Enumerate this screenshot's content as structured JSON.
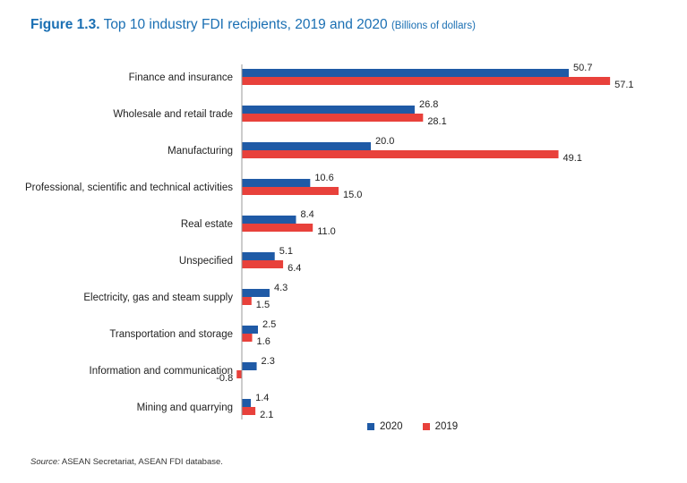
{
  "header": {
    "figure_label": "Figure 1.3.",
    "title_text": "Top 10 industry FDI recipients, 2019 and 2020",
    "units": "(Billions of dollars)"
  },
  "chart_data": {
    "type": "bar",
    "orientation": "horizontal",
    "title": "Top 10 industry FDI recipients, 2019 and 2020",
    "units": "(Billions of dollars)",
    "categories": [
      "Finance and insurance",
      "Wholesale and retail trade",
      "Manufacturing",
      "Professional, scientific and technical activities",
      "Real estate",
      "Unspecified",
      "Electricity, gas and steam supply",
      "Transportation and storage",
      "Information and communication",
      "Mining and quarrying"
    ],
    "series": [
      {
        "name": "2020",
        "color": "#1f5aa6",
        "values": [
          50.7,
          26.8,
          20.0,
          10.6,
          8.4,
          5.1,
          4.3,
          2.5,
          2.3,
          1.4
        ],
        "labels": [
          "50.7",
          "26.8",
          "20.0",
          "10.6",
          "8.4",
          "5.1",
          "4.3",
          "2.5",
          "2.3",
          "1.4"
        ]
      },
      {
        "name": "2019",
        "color": "#e8413b",
        "values": [
          57.1,
          28.1,
          49.1,
          15.0,
          11.0,
          6.4,
          1.5,
          1.6,
          -0.8,
          2.1
        ],
        "labels": [
          "57.1",
          "28.1",
          "49.1",
          "15.0",
          "11.0",
          "6.4",
          "1.5",
          "1.6",
          "-0.8",
          "2.1"
        ]
      }
    ],
    "negative_label_color": "#e8413b",
    "legend_position": "bottom-right",
    "grid": false
  },
  "legend": {
    "items": [
      {
        "label": "2020",
        "color": "#1f5aa6"
      },
      {
        "label": "2019",
        "color": "#e8413b"
      }
    ]
  },
  "footer": {
    "source_label": "Source:",
    "source_text": " ASEAN Secretariat, ASEAN FDI database."
  }
}
